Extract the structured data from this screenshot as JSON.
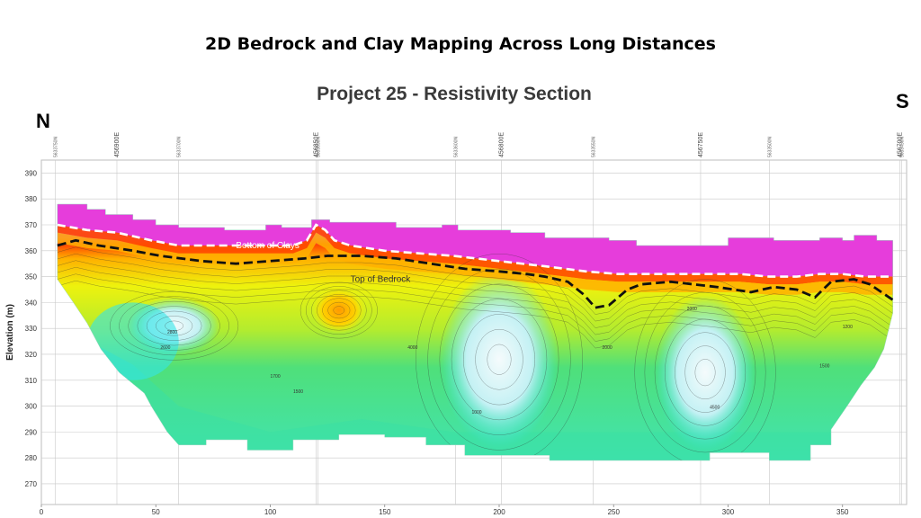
{
  "slide": {
    "title": "2D Bedrock and Clay Mapping Across Long Distances"
  },
  "compass": {
    "north": "N",
    "south": "S"
  },
  "chart_data": {
    "type": "heatmap",
    "title": "Project 25 - Resistivity Section",
    "ylabel": "Elevation (m)",
    "xlabel": "",
    "xlim": [
      0,
      378
    ],
    "ylim": [
      262,
      395
    ],
    "grid": true,
    "x_ticks": [
      0,
      50,
      100,
      150,
      200,
      250,
      300,
      350
    ],
    "y_ticks": [
      270,
      280,
      290,
      300,
      310,
      320,
      330,
      340,
      350,
      360,
      370,
      380,
      390
    ],
    "coordinate_labels": [
      {
        "x": 6,
        "text": "5633750N",
        "size": "small"
      },
      {
        "x": 33,
        "text": "456900E",
        "size": "large"
      },
      {
        "x": 60,
        "text": "5633700N",
        "size": "small"
      },
      {
        "x": 120,
        "text": "456850E",
        "size": "large"
      },
      {
        "x": 120.8,
        "text": "5633650N",
        "size": "small"
      },
      {
        "x": 181,
        "text": "5633600N",
        "size": "small"
      },
      {
        "x": 201,
        "text": "456800E",
        "size": "large"
      },
      {
        "x": 241,
        "text": "5633550N",
        "size": "small"
      },
      {
        "x": 288,
        "text": "456750E",
        "size": "large"
      },
      {
        "x": 318,
        "text": "5633500N",
        "size": "small"
      },
      {
        "x": 375,
        "text": "456700E",
        "size": "large"
      },
      {
        "x": 375.8,
        "text": "5633450N",
        "size": "small"
      }
    ],
    "annotations": [
      {
        "text": "Bottom of Clays",
        "x": 85,
        "y": 361,
        "color": "#ffffff"
      },
      {
        "text": "Top of Bedrock",
        "x": 135,
        "y": 348,
        "color": "#333333"
      }
    ],
    "contour_labels": [
      {
        "text": "2800",
        "x": 55,
        "y": 328
      },
      {
        "text": "2600",
        "x": 52,
        "y": 322
      },
      {
        "text": "1700",
        "x": 100,
        "y": 311
      },
      {
        "text": "1500",
        "x": 110,
        "y": 305
      },
      {
        "text": "4000",
        "x": 160,
        "y": 322
      },
      {
        "text": "1000",
        "x": 188,
        "y": 297
      },
      {
        "text": "2000",
        "x": 245,
        "y": 322
      },
      {
        "text": "2000",
        "x": 282,
        "y": 337
      },
      {
        "text": "4500",
        "x": 292,
        "y": 299
      },
      {
        "text": "1500",
        "x": 340,
        "y": 315
      },
      {
        "text": "1200",
        "x": 350,
        "y": 330
      }
    ],
    "section_top": [
      [
        7,
        378
      ],
      [
        20,
        378
      ],
      [
        20,
        376
      ],
      [
        28,
        376
      ],
      [
        28,
        374
      ],
      [
        40,
        374
      ],
      [
        40,
        372
      ],
      [
        50,
        372
      ],
      [
        50,
        370
      ],
      [
        60,
        370
      ],
      [
        60,
        369
      ],
      [
        80,
        369
      ],
      [
        80,
        368
      ],
      [
        98,
        368
      ],
      [
        98,
        370
      ],
      [
        105,
        370
      ],
      [
        105,
        369
      ],
      [
        118,
        369
      ],
      [
        118,
        372
      ],
      [
        126,
        372
      ],
      [
        126,
        371
      ],
      [
        155,
        371
      ],
      [
        155,
        369
      ],
      [
        175,
        369
      ],
      [
        175,
        370
      ],
      [
        182,
        370
      ],
      [
        182,
        368
      ],
      [
        205,
        368
      ],
      [
        205,
        367
      ],
      [
        220,
        367
      ],
      [
        220,
        365
      ],
      [
        248,
        365
      ],
      [
        248,
        364
      ],
      [
        260,
        364
      ],
      [
        260,
        362
      ],
      [
        300,
        362
      ],
      [
        300,
        365
      ],
      [
        320,
        365
      ],
      [
        320,
        364
      ],
      [
        340,
        364
      ],
      [
        340,
        365
      ],
      [
        350,
        365
      ],
      [
        350,
        364
      ],
      [
        355,
        364
      ],
      [
        355,
        366
      ],
      [
        365,
        366
      ],
      [
        365,
        364
      ],
      [
        372,
        364
      ]
    ],
    "section_bottom": [
      [
        7,
        349
      ],
      [
        14,
        340
      ],
      [
        20,
        332
      ],
      [
        26,
        322
      ],
      [
        34,
        313
      ],
      [
        45,
        305
      ],
      [
        48,
        300
      ],
      [
        55,
        290
      ],
      [
        60,
        285
      ],
      [
        72,
        285
      ],
      [
        72,
        287
      ],
      [
        90,
        287
      ],
      [
        90,
        283
      ],
      [
        110,
        283
      ],
      [
        110,
        287
      ],
      [
        130,
        287
      ],
      [
        130,
        289
      ],
      [
        150,
        289
      ],
      [
        150,
        288
      ],
      [
        168,
        288
      ],
      [
        168,
        285
      ],
      [
        185,
        285
      ],
      [
        185,
        281
      ],
      [
        222,
        281
      ],
      [
        222,
        279
      ],
      [
        292,
        279
      ],
      [
        292,
        282
      ],
      [
        318,
        282
      ],
      [
        318,
        279
      ],
      [
        336,
        279
      ],
      [
        336,
        285
      ],
      [
        345,
        285
      ],
      [
        345,
        291
      ],
      [
        352,
        300
      ],
      [
        358,
        308
      ],
      [
        364,
        315
      ],
      [
        368,
        322
      ],
      [
        372,
        336
      ],
      [
        372,
        364
      ]
    ],
    "bottom_of_clays": [
      [
        7,
        370
      ],
      [
        20,
        368
      ],
      [
        33,
        367
      ],
      [
        48,
        364
      ],
      [
        60,
        362
      ],
      [
        78,
        362
      ],
      [
        95,
        362
      ],
      [
        110,
        362
      ],
      [
        116,
        364
      ],
      [
        120,
        370
      ],
      [
        124,
        368
      ],
      [
        128,
        364
      ],
      [
        135,
        362
      ],
      [
        150,
        360
      ],
      [
        165,
        359
      ],
      [
        180,
        358
      ],
      [
        200,
        356
      ],
      [
        220,
        354
      ],
      [
        238,
        352
      ],
      [
        252,
        351
      ],
      [
        270,
        351
      ],
      [
        290,
        351
      ],
      [
        305,
        351
      ],
      [
        318,
        350
      ],
      [
        330,
        350
      ],
      [
        340,
        351
      ],
      [
        350,
        351
      ],
      [
        360,
        350
      ],
      [
        372,
        350
      ]
    ],
    "top_of_bedrock": [
      [
        7,
        362
      ],
      [
        15,
        364
      ],
      [
        25,
        362
      ],
      [
        40,
        360
      ],
      [
        52,
        358
      ],
      [
        70,
        356
      ],
      [
        85,
        355
      ],
      [
        100,
        356
      ],
      [
        115,
        357
      ],
      [
        125,
        358
      ],
      [
        140,
        358
      ],
      [
        155,
        357
      ],
      [
        170,
        355
      ],
      [
        185,
        353
      ],
      [
        200,
        352
      ],
      [
        212,
        351
      ],
      [
        220,
        350
      ],
      [
        230,
        348
      ],
      [
        237,
        343
      ],
      [
        242,
        338
      ],
      [
        248,
        339
      ],
      [
        256,
        345
      ],
      [
        262,
        347
      ],
      [
        275,
        348
      ],
      [
        295,
        346
      ],
      [
        310,
        344
      ],
      [
        320,
        346
      ],
      [
        330,
        345
      ],
      [
        338,
        342
      ],
      [
        345,
        348
      ],
      [
        355,
        349
      ],
      [
        362,
        347
      ],
      [
        372,
        341
      ]
    ],
    "bodies": [
      {
        "name": "resistive-high-north",
        "cx": 58,
        "cy": 331,
        "rx": 20,
        "ry": 11,
        "value": 2800
      },
      {
        "name": "resistive-high-center",
        "cx": 200,
        "cy": 318,
        "rx": 26,
        "ry": 34,
        "value": 4000
      },
      {
        "name": "resistive-high-south",
        "cx": 290,
        "cy": 313,
        "rx": 22,
        "ry": 30,
        "value": 4500
      },
      {
        "name": "conductive-low-center",
        "cx": 130,
        "cy": 337,
        "rx": 12,
        "ry": 9,
        "value": 200
      }
    ],
    "colors": {
      "clay": "#e63ddb",
      "clay_deep": "#d72bd4",
      "conductive": "#ff4b00",
      "transition": "#ffb000",
      "mid": "#eef20d",
      "green": "#4fe07a",
      "cyan": "#34e4e7",
      "resistive": "#d8f4f6",
      "grid": "#c8c8c8"
    }
  }
}
